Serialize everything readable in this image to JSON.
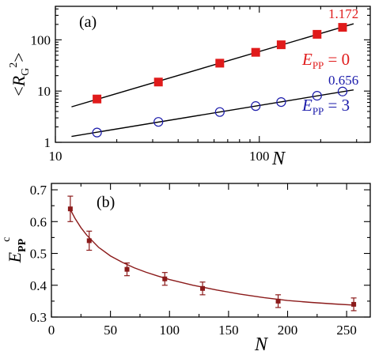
{
  "colors": {
    "red": "#e01b1b",
    "blue": "#1a1aaa",
    "maroon": "#8b1a1a",
    "fit_line": "#000000",
    "axis": "#000000"
  },
  "chart_data": [
    {
      "panel_label": "(a)",
      "type": "scatter",
      "xlabel": "N",
      "ylabel_parts": {
        "open": "<",
        "base": "R",
        "sub": "G",
        "sup": "2",
        "close": ">"
      },
      "xscale": "log",
      "yscale": "log",
      "xlim": [
        10,
        350
      ],
      "ylim": [
        1,
        450
      ],
      "x_tick_labels": [
        {
          "value": 10,
          "text": "10"
        },
        {
          "value": 100,
          "text": "100"
        }
      ],
      "y_tick_labels": [
        {
          "value": 1,
          "text": "1"
        },
        {
          "value": 10,
          "text": "10"
        },
        {
          "value": 100,
          "text": "100"
        }
      ],
      "grid": false,
      "series": [
        {
          "x": [
            16,
            32,
            64,
            96,
            128,
            192,
            256
          ],
          "y": [
            7.0,
            15,
            35,
            57,
            80,
            128,
            175
          ],
          "marker": "filled-square",
          "color": "#e01b1b",
          "fit": {
            "slope": 1.172,
            "x_range": [
              12,
              290
            ]
          },
          "slope_label": "1.172",
          "param_label": {
            "sym": "E",
            "sub": "PP",
            "eq": " = 0"
          }
        },
        {
          "x": [
            16,
            32,
            64,
            96,
            128,
            192,
            256
          ],
          "y": [
            1.55,
            2.5,
            3.9,
            5.1,
            6.1,
            8.1,
            9.8
          ],
          "marker": "open-circle",
          "color": "#1a1aaa",
          "fit": {
            "slope": 0.656,
            "x_range": [
              12,
              290
            ]
          },
          "slope_label": "0.656",
          "param_label": {
            "sym": "E",
            "sub": "PP",
            "eq": " = 3"
          }
        }
      ]
    },
    {
      "panel_label": "(b)",
      "type": "line",
      "xlabel": "N",
      "ylabel_parts": {
        "base": "E",
        "sub": "PP",
        "sup": "c"
      },
      "xlim": [
        0,
        270
      ],
      "ylim": [
        0.3,
        0.72
      ],
      "x_tick_labels": [
        "0",
        "50",
        "100",
        "150",
        "200",
        "250"
      ],
      "x_ticks": [
        0,
        50,
        100,
        150,
        200,
        250
      ],
      "y_tick_labels": [
        "0.3",
        "0.4",
        "0.5",
        "0.6",
        "0.7"
      ],
      "y_ticks": [
        0.3,
        0.4,
        0.5,
        0.6,
        0.7
      ],
      "grid": false,
      "series": [
        {
          "x": [
            16,
            32,
            64,
            96,
            128,
            192,
            256
          ],
          "y": [
            0.64,
            0.54,
            0.45,
            0.42,
            0.39,
            0.35,
            0.34
          ],
          "yerr": [
            0.04,
            0.03,
            0.02,
            0.02,
            0.02,
            0.02,
            0.02
          ],
          "marker": "filled-square",
          "color": "#8b1a1a",
          "fit_curve": {
            "x": [
              15,
              20,
              25,
              30,
              40,
              50,
              60,
              70,
              80,
              90,
              100,
              120,
              140,
              160,
              180,
              200,
              220,
              240,
              258
            ],
            "y": [
              0.645,
              0.61,
              0.581,
              0.557,
              0.519,
              0.492,
              0.472,
              0.455,
              0.441,
              0.429,
              0.418,
              0.4,
              0.385,
              0.372,
              0.361,
              0.352,
              0.346,
              0.341,
              0.337
            ]
          }
        }
      ]
    }
  ]
}
